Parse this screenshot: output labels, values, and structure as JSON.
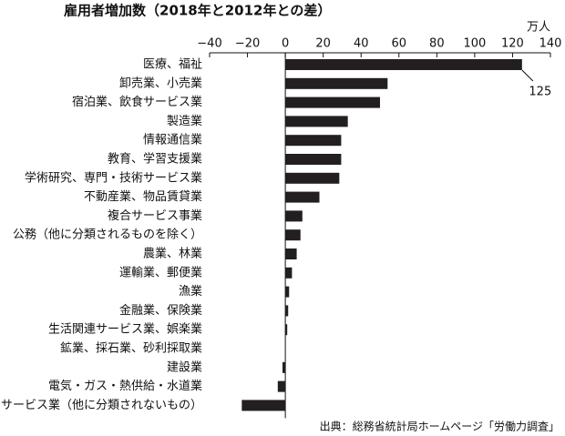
{
  "chart_data": {
    "type": "bar",
    "orientation": "horizontal",
    "title": "雇用者増加数（2018年と2012年との差）",
    "unit": "万人",
    "source": "出典：総務省統計局ホームページ「労働力調査」",
    "categories": [
      "医療、福祉",
      "卸売業、小売業",
      "宿泊業、飲食サービス業",
      "製造業",
      "情報通信業",
      "教育、学習支援業",
      "学術研究、専門・技術サービス業",
      "不動産業、物品賃貸業",
      "複合サービス事業",
      "公務（他に分類されるものを除く）",
      "農業、林業",
      "運輸業、郵便業",
      "漁業",
      "金融業、保険業",
      "生活関連サービス業、娯楽業",
      "鉱業、採石業、砂利採取業",
      "建設業",
      "電気・ガス・熱供給・水道業",
      "サービス業（他に分類されないもの）"
    ],
    "values": [
      125,
      54,
      50,
      33,
      29.5,
      29.5,
      28.5,
      18,
      9,
      8,
      6,
      3.5,
      2,
      1.5,
      1,
      0.2,
      -1.5,
      -4,
      -23
    ],
    "color": "#231f20",
    "xlim": [
      -40,
      140
    ],
    "xticks": [
      {
        "value": -40,
        "label": "−40"
      },
      {
        "value": -20,
        "label": "−20"
      },
      0,
      20,
      40,
      60,
      80,
      100,
      120,
      140
    ]
  }
}
